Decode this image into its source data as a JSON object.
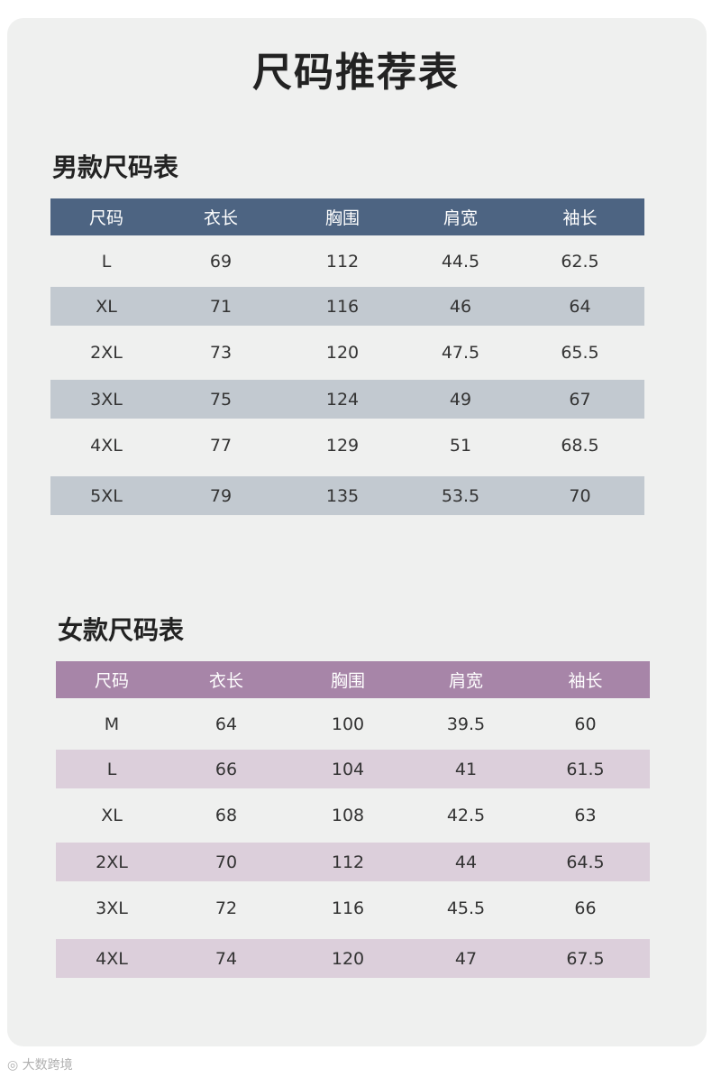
{
  "title": "尺码推荐表",
  "men": {
    "title": "男款尺码表",
    "headers": [
      "尺码",
      "衣长",
      "胸围",
      "肩宽",
      "袖长"
    ],
    "rows": [
      [
        "L",
        "69",
        "112",
        "44.5",
        "62.5"
      ],
      [
        "XL",
        "71",
        "116",
        "46",
        "64"
      ],
      [
        "2XL",
        "73",
        "120",
        "47.5",
        "65.5"
      ],
      [
        "3XL",
        "75",
        "124",
        "49",
        "67"
      ],
      [
        "4XL",
        "77",
        "129",
        "51",
        "68.5"
      ],
      [
        "5XL",
        "79",
        "135",
        "53.5",
        "70"
      ]
    ]
  },
  "women": {
    "title": "女款尺码表",
    "headers": [
      "尺码",
      "衣长",
      "胸围",
      "肩宽",
      "袖长"
    ],
    "rows": [
      [
        "M",
        "64",
        "100",
        "39.5",
        "60"
      ],
      [
        "L",
        "66",
        "104",
        "41",
        "61.5"
      ],
      [
        "XL",
        "68",
        "108",
        "42.5",
        "63"
      ],
      [
        "2XL",
        "70",
        "112",
        "44",
        "64.5"
      ],
      [
        "3XL",
        "72",
        "116",
        "45.5",
        "66"
      ],
      [
        "4XL",
        "74",
        "120",
        "47",
        "67.5"
      ]
    ]
  },
  "watermark": "大数跨境",
  "colors": {
    "men_header": "#4d6482",
    "men_stripe": "#c2c9d0",
    "women_header": "#a785a8",
    "women_stripe": "#dccfdb",
    "background": "#eff0ef"
  }
}
